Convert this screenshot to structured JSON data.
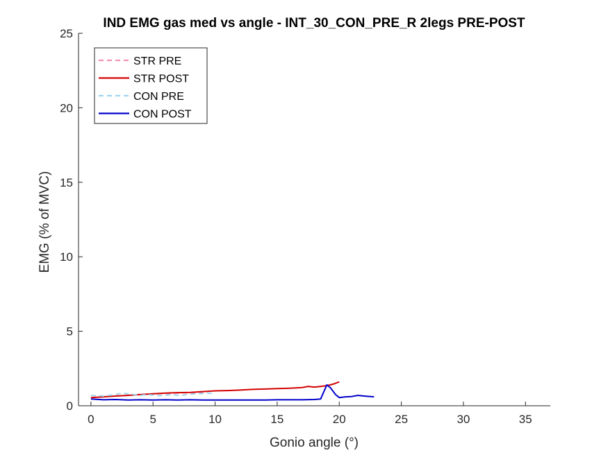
{
  "chart_data": {
    "type": "line",
    "title": "IND EMG gas med vs angle - INT_30_CON_PRE_R 2legs PRE-POST",
    "xlabel": "Gonio angle (°)",
    "ylabel": "EMG (% of MVC)",
    "xlim": [
      -1,
      37
    ],
    "ylim": [
      0,
      25
    ],
    "xticks": [
      "0",
      "5",
      "10",
      "15",
      "20",
      "25",
      "30",
      "35"
    ],
    "yticks": [
      "0",
      "5",
      "10",
      "15",
      "20",
      "25"
    ],
    "grid": false,
    "legend_position": "top-left",
    "series": [
      {
        "name": "STR PRE",
        "color": "#f48fb1",
        "style": "dashed",
        "x": [
          0,
          1,
          2,
          3,
          4,
          5,
          6,
          7,
          8,
          9
        ],
        "y": [
          0.55,
          0.6,
          0.65,
          0.7,
          0.75,
          0.8,
          0.82,
          0.85,
          0.88,
          0.9
        ]
      },
      {
        "name": "STR POST",
        "color": "#d40000",
        "style": "solid",
        "x": [
          0,
          1,
          2,
          3,
          4,
          5,
          6,
          7,
          8,
          9,
          10,
          11,
          12,
          13,
          14,
          15,
          16,
          17,
          17.5,
          18,
          18.5,
          19,
          19.5,
          20
        ],
        "y": [
          0.55,
          0.6,
          0.65,
          0.7,
          0.75,
          0.8,
          0.85,
          0.88,
          0.9,
          0.95,
          1.0,
          1.02,
          1.05,
          1.1,
          1.12,
          1.15,
          1.18,
          1.22,
          1.3,
          1.25,
          1.3,
          1.35,
          1.45,
          1.6
        ]
      },
      {
        "name": "CON PRE",
        "color": "#9ed4ee",
        "style": "dashed",
        "x": [
          0,
          1,
          2,
          2.5,
          3,
          3.5,
          4,
          4.5,
          5,
          5.5,
          6,
          6.5,
          7,
          7.5,
          8,
          8.5,
          9,
          9.5,
          10
        ],
        "y": [
          0.7,
          0.65,
          0.75,
          0.85,
          0.8,
          0.75,
          0.7,
          0.75,
          0.72,
          0.68,
          0.7,
          0.75,
          0.7,
          0.72,
          0.78,
          0.8,
          0.82,
          0.85,
          0.8
        ]
      },
      {
        "name": "CON POST",
        "color": "#0000cc",
        "style": "solid",
        "x": [
          0,
          1,
          2,
          3,
          4,
          5,
          6,
          7,
          8,
          9,
          10,
          11,
          12,
          13,
          14,
          15,
          16,
          17,
          18,
          18.5,
          19,
          19.3,
          19.7,
          20,
          20.5,
          21,
          21.5,
          22,
          22.8
        ],
        "y": [
          0.45,
          0.4,
          0.42,
          0.38,
          0.4,
          0.38,
          0.4,
          0.38,
          0.4,
          0.38,
          0.38,
          0.38,
          0.38,
          0.38,
          0.38,
          0.4,
          0.4,
          0.4,
          0.42,
          0.45,
          1.4,
          1.2,
          0.75,
          0.55,
          0.6,
          0.62,
          0.7,
          0.65,
          0.6
        ]
      }
    ]
  }
}
